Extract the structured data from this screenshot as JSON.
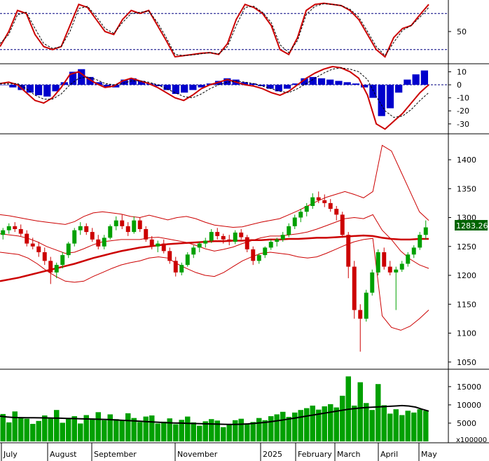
{
  "chart_data": [
    {
      "type": "line",
      "panel": "stochastic",
      "y_ticks": [
        50
      ],
      "ylim": [
        0,
        100
      ],
      "reference_lines": [
        80,
        20
      ],
      "series": [
        {
          "color": "#cc0000",
          "style": "solid",
          "values": [
            25,
            50,
            85,
            80,
            45,
            25,
            20,
            25,
            60,
            95,
            90,
            70,
            50,
            45,
            70,
            85,
            80,
            85,
            60,
            35,
            8,
            10,
            12,
            14,
            15,
            12,
            30,
            70,
            95,
            90,
            80,
            60,
            20,
            12,
            40,
            85,
            95,
            97,
            95,
            93,
            85,
            70,
            45,
            20,
            8,
            40,
            55,
            60,
            78,
            95
          ]
        },
        {
          "color": "#000000",
          "style": "dashed",
          "values": [
            30,
            45,
            78,
            82,
            55,
            30,
            22,
            25,
            50,
            88,
            92,
            75,
            55,
            47,
            65,
            80,
            82,
            84,
            65,
            40,
            12,
            10,
            11,
            13,
            15,
            13,
            25,
            60,
            90,
            92,
            82,
            65,
            28,
            15,
            35,
            78,
            92,
            96,
            95,
            93,
            87,
            74,
            50,
            25,
            10,
            32,
            52,
            60,
            74,
            90
          ]
        }
      ]
    },
    {
      "type": "bar",
      "panel": "macd",
      "y_ticks": [
        10,
        0,
        -10,
        -20,
        -30
      ],
      "ylim": [
        -36,
        14
      ],
      "histogram": [
        0,
        -2,
        -4,
        -6,
        -8,
        -9,
        -5,
        2,
        10,
        12,
        6,
        2,
        -2,
        -2,
        4,
        5,
        3,
        1,
        -1,
        -4,
        -7,
        -6,
        -4,
        -2,
        1,
        3,
        5,
        4,
        2,
        1,
        -1,
        -3,
        -5,
        -3,
        1,
        5,
        6,
        5,
        4,
        3,
        2,
        1,
        -2,
        -10,
        -24,
        -18,
        -6,
        4,
        8,
        11
      ],
      "series": [
        {
          "color": "#cc0000",
          "style": "solid",
          "values": [
            1,
            2,
            0,
            -6,
            -12,
            -14,
            -10,
            -2,
            8,
            10,
            5,
            1,
            -2,
            -1,
            3,
            5,
            3,
            1,
            -2,
            -6,
            -10,
            -12,
            -8,
            -3,
            0,
            2,
            4,
            2,
            0,
            -1,
            -3,
            -6,
            -8,
            -5,
            0,
            5,
            9,
            12,
            14,
            13,
            10,
            5,
            -8,
            -30,
            -34,
            -28,
            -22,
            -14,
            -6,
            0
          ]
        },
        {
          "color": "#000000",
          "style": "dashed",
          "values": [
            1,
            1,
            1,
            -3,
            -8,
            -11,
            -11,
            -7,
            0,
            5,
            6,
            4,
            1,
            0,
            1,
            3,
            3,
            2,
            0,
            -3,
            -6,
            -9,
            -10,
            -7,
            -3,
            0,
            2,
            3,
            2,
            1,
            -1,
            -3,
            -5,
            -6,
            -3,
            1,
            5,
            9,
            12,
            13,
            12,
            10,
            4,
            -9,
            -20,
            -25,
            -24,
            -19,
            -12,
            -6
          ]
        }
      ]
    },
    {
      "type": "candlestick",
      "panel": "price",
      "y_ticks": [
        1400,
        1350,
        1300,
        1250,
        1200,
        1150,
        1100,
        1050
      ],
      "ylim": [
        1040,
        1440
      ],
      "last_price_label": "1283.260",
      "candles": [
        [
          1270,
          1282,
          1262,
          1278
        ],
        [
          1278,
          1290,
          1272,
          1285
        ],
        [
          1285,
          1292,
          1275,
          1280
        ],
        [
          1280,
          1288,
          1268,
          1272
        ],
        [
          1272,
          1278,
          1250,
          1255
        ],
        [
          1255,
          1265,
          1245,
          1250
        ],
        [
          1250,
          1258,
          1232,
          1240
        ],
        [
          1240,
          1248,
          1218,
          1225
        ],
        [
          1225,
          1232,
          1185,
          1205
        ],
        [
          1205,
          1222,
          1195,
          1218
        ],
        [
          1218,
          1240,
          1212,
          1235
        ],
        [
          1235,
          1258,
          1230,
          1255
        ],
        [
          1255,
          1282,
          1250,
          1278
        ],
        [
          1278,
          1292,
          1270,
          1285
        ],
        [
          1285,
          1290,
          1270,
          1275
        ],
        [
          1275,
          1282,
          1258,
          1262
        ],
        [
          1262,
          1270,
          1245,
          1250
        ],
        [
          1250,
          1270,
          1245,
          1265
        ],
        [
          1265,
          1288,
          1262,
          1285
        ],
        [
          1285,
          1302,
          1278,
          1295
        ],
        [
          1295,
          1305,
          1280,
          1285
        ],
        [
          1285,
          1292,
          1268,
          1275
        ],
        [
          1275,
          1302,
          1272,
          1295
        ],
        [
          1295,
          1300,
          1275,
          1280
        ],
        [
          1280,
          1285,
          1258,
          1262
        ],
        [
          1262,
          1268,
          1245,
          1250
        ],
        [
          1250,
          1260,
          1240,
          1255
        ],
        [
          1255,
          1262,
          1238,
          1242
        ],
        [
          1242,
          1248,
          1220,
          1225
        ],
        [
          1225,
          1232,
          1198,
          1205
        ],
        [
          1205,
          1222,
          1200,
          1218
        ],
        [
          1218,
          1240,
          1215,
          1236
        ],
        [
          1236,
          1252,
          1230,
          1248
        ],
        [
          1248,
          1258,
          1240,
          1255
        ],
        [
          1255,
          1265,
          1248,
          1260
        ],
        [
          1260,
          1280,
          1256,
          1275
        ],
        [
          1275,
          1282,
          1262,
          1268
        ],
        [
          1268,
          1272,
          1255,
          1262
        ],
        [
          1262,
          1270,
          1252,
          1258
        ],
        [
          1258,
          1278,
          1254,
          1274
        ],
        [
          1274,
          1280,
          1262,
          1266
        ],
        [
          1266,
          1270,
          1240,
          1245
        ],
        [
          1245,
          1250,
          1218,
          1225
        ],
        [
          1225,
          1238,
          1220,
          1235
        ],
        [
          1235,
          1250,
          1230,
          1248
        ],
        [
          1248,
          1262,
          1244,
          1258
        ],
        [
          1258,
          1265,
          1250,
          1262
        ],
        [
          1262,
          1275,
          1258,
          1270
        ],
        [
          1270,
          1290,
          1266,
          1285
        ],
        [
          1285,
          1305,
          1280,
          1300
        ],
        [
          1300,
          1315,
          1292,
          1310
        ],
        [
          1310,
          1325,
          1302,
          1320
        ],
        [
          1320,
          1342,
          1315,
          1335
        ],
        [
          1335,
          1345,
          1325,
          1330
        ],
        [
          1330,
          1340,
          1318,
          1325
        ],
        [
          1325,
          1332,
          1310,
          1315
        ],
        [
          1315,
          1320,
          1295,
          1305
        ],
        [
          1305,
          1310,
          1265,
          1270
        ],
        [
          1270,
          1275,
          1195,
          1215
        ],
        [
          1215,
          1225,
          1125,
          1140
        ],
        [
          1140,
          1150,
          1068,
          1125
        ],
        [
          1125,
          1175,
          1120,
          1170
        ],
        [
          1170,
          1210,
          1165,
          1205
        ],
        [
          1205,
          1245,
          1200,
          1240
        ],
        [
          1240,
          1248,
          1210,
          1215
        ],
        [
          1215,
          1225,
          1200,
          1205
        ],
        [
          1205,
          1215,
          1140,
          1210
        ],
        [
          1210,
          1225,
          1206,
          1220
        ],
        [
          1220,
          1240,
          1215,
          1236
        ],
        [
          1236,
          1252,
          1230,
          1248
        ],
        [
          1248,
          1275,
          1244,
          1270
        ],
        [
          1270,
          1295,
          1262,
          1283
        ]
      ],
      "series": [
        {
          "role": "ma200",
          "color": "#cc0000",
          "values": [
            1190,
            1193,
            1196,
            1200,
            1204,
            1208,
            1212,
            1216,
            1220,
            1225,
            1230,
            1234,
            1238,
            1242,
            1245,
            1248,
            1250,
            1252,
            1254,
            1255,
            1256,
            1257,
            1258,
            1259,
            1259,
            1260,
            1260,
            1261,
            1261,
            1262,
            1262,
            1263,
            1263,
            1264,
            1265,
            1265,
            1266,
            1267,
            1268,
            1269,
            1268,
            1265,
            1263,
            1262,
            1262,
            1263,
            1263
          ]
        },
        {
          "role": "bb_upper",
          "color": "#cc0000",
          "values": [
            1305,
            1303,
            1300,
            1297,
            1294,
            1292,
            1290,
            1288,
            1293,
            1302,
            1308,
            1310,
            1308,
            1306,
            1302,
            1300,
            1304,
            1300,
            1296,
            1300,
            1302,
            1298,
            1292,
            1287,
            1285,
            1283,
            1284,
            1288,
            1292,
            1295,
            1298,
            1305,
            1312,
            1320,
            1328,
            1335,
            1340,
            1345,
            1340,
            1334,
            1345,
            1425,
            1415,
            1380,
            1345,
            1310,
            1295
          ]
        },
        {
          "role": "bb_lower",
          "color": "#cc0000",
          "values": [
            1240,
            1238,
            1236,
            1230,
            1220,
            1208,
            1198,
            1190,
            1188,
            1190,
            1198,
            1205,
            1212,
            1218,
            1222,
            1225,
            1230,
            1232,
            1230,
            1220,
            1212,
            1205,
            1200,
            1198,
            1205,
            1215,
            1225,
            1232,
            1238,
            1240,
            1238,
            1236,
            1232,
            1230,
            1232,
            1238,
            1245,
            1252,
            1258,
            1262,
            1264,
            1130,
            1110,
            1105,
            1112,
            1125,
            1140
          ]
        },
        {
          "role": "bb_mid",
          "color": "#cc0000",
          "values": [
            1272,
            1270,
            1268,
            1264,
            1258,
            1250,
            1244,
            1238,
            1240,
            1246,
            1253,
            1258,
            1260,
            1262,
            1262,
            1262,
            1265,
            1266,
            1263,
            1260,
            1257,
            1252,
            1246,
            1242,
            1245,
            1249,
            1255,
            1260,
            1265,
            1268,
            1268,
            1270,
            1272,
            1275,
            1280,
            1286,
            1292,
            1298,
            1300,
            1298,
            1305,
            1278,
            1262,
            1242,
            1228,
            1218,
            1212
          ]
        }
      ]
    },
    {
      "type": "bar",
      "panel": "volume",
      "unit_label": "x100000",
      "y_ticks": [
        15000,
        10000,
        5000
      ],
      "ylim": [
        0,
        19000
      ],
      "values": [
        7500,
        5200,
        8200,
        6400,
        6200,
        4800,
        5600,
        7100,
        6300,
        8600,
        5100,
        6200,
        6900,
        4900,
        7200,
        6300,
        8000,
        5800,
        7400,
        6100,
        5900,
        7700,
        6400,
        5300,
        6800,
        7100,
        4900,
        5400,
        6300,
        4700,
        5900,
        6800,
        5200,
        4300,
        5500,
        6100,
        5700,
        3900,
        4600,
        5800,
        6200,
        4900,
        5300,
        6400,
        5800,
        6900,
        7400,
        8100,
        6700,
        7900,
        8600,
        9100,
        9800,
        8700,
        9600,
        10200,
        9300,
        12500,
        17800,
        9800,
        16200,
        10500,
        8600,
        15700,
        9900,
        7600,
        8800,
        7200,
        8400,
        7900,
        8800,
        8400
      ],
      "series": [
        {
          "role": "volume_ma",
          "color": "#000000",
          "values": [
            6900,
            6700,
            6550,
            6500,
            6480,
            6470,
            6450,
            6430,
            6400,
            6350,
            6300,
            6250,
            6200,
            6150,
            6100,
            6050,
            6000,
            5900,
            5800,
            5700,
            5600,
            5500,
            5400,
            5300,
            5200,
            5100,
            5050,
            5000,
            4950,
            4900,
            4850,
            4800,
            4750,
            4700,
            4650,
            4650,
            4700,
            4800,
            4950,
            5100,
            5300,
            5550,
            5800,
            6100,
            6400,
            6700,
            7000,
            7300,
            7600,
            7900,
            8200,
            8500,
            8800,
            9000,
            9200,
            9300,
            9400,
            9500,
            9600,
            9700,
            9800,
            9700,
            9400,
            8800,
            8300
          ]
        }
      ]
    }
  ],
  "x_labels": [
    "July",
    "August",
    "September",
    "November",
    "2025",
    "February",
    "March",
    "April",
    "May"
  ],
  "colors": {
    "up": "#00a000",
    "down": "#cc0000",
    "macd_hist": "#0000cc",
    "volume": "#00a000",
    "badge_bg": "#006400"
  }
}
